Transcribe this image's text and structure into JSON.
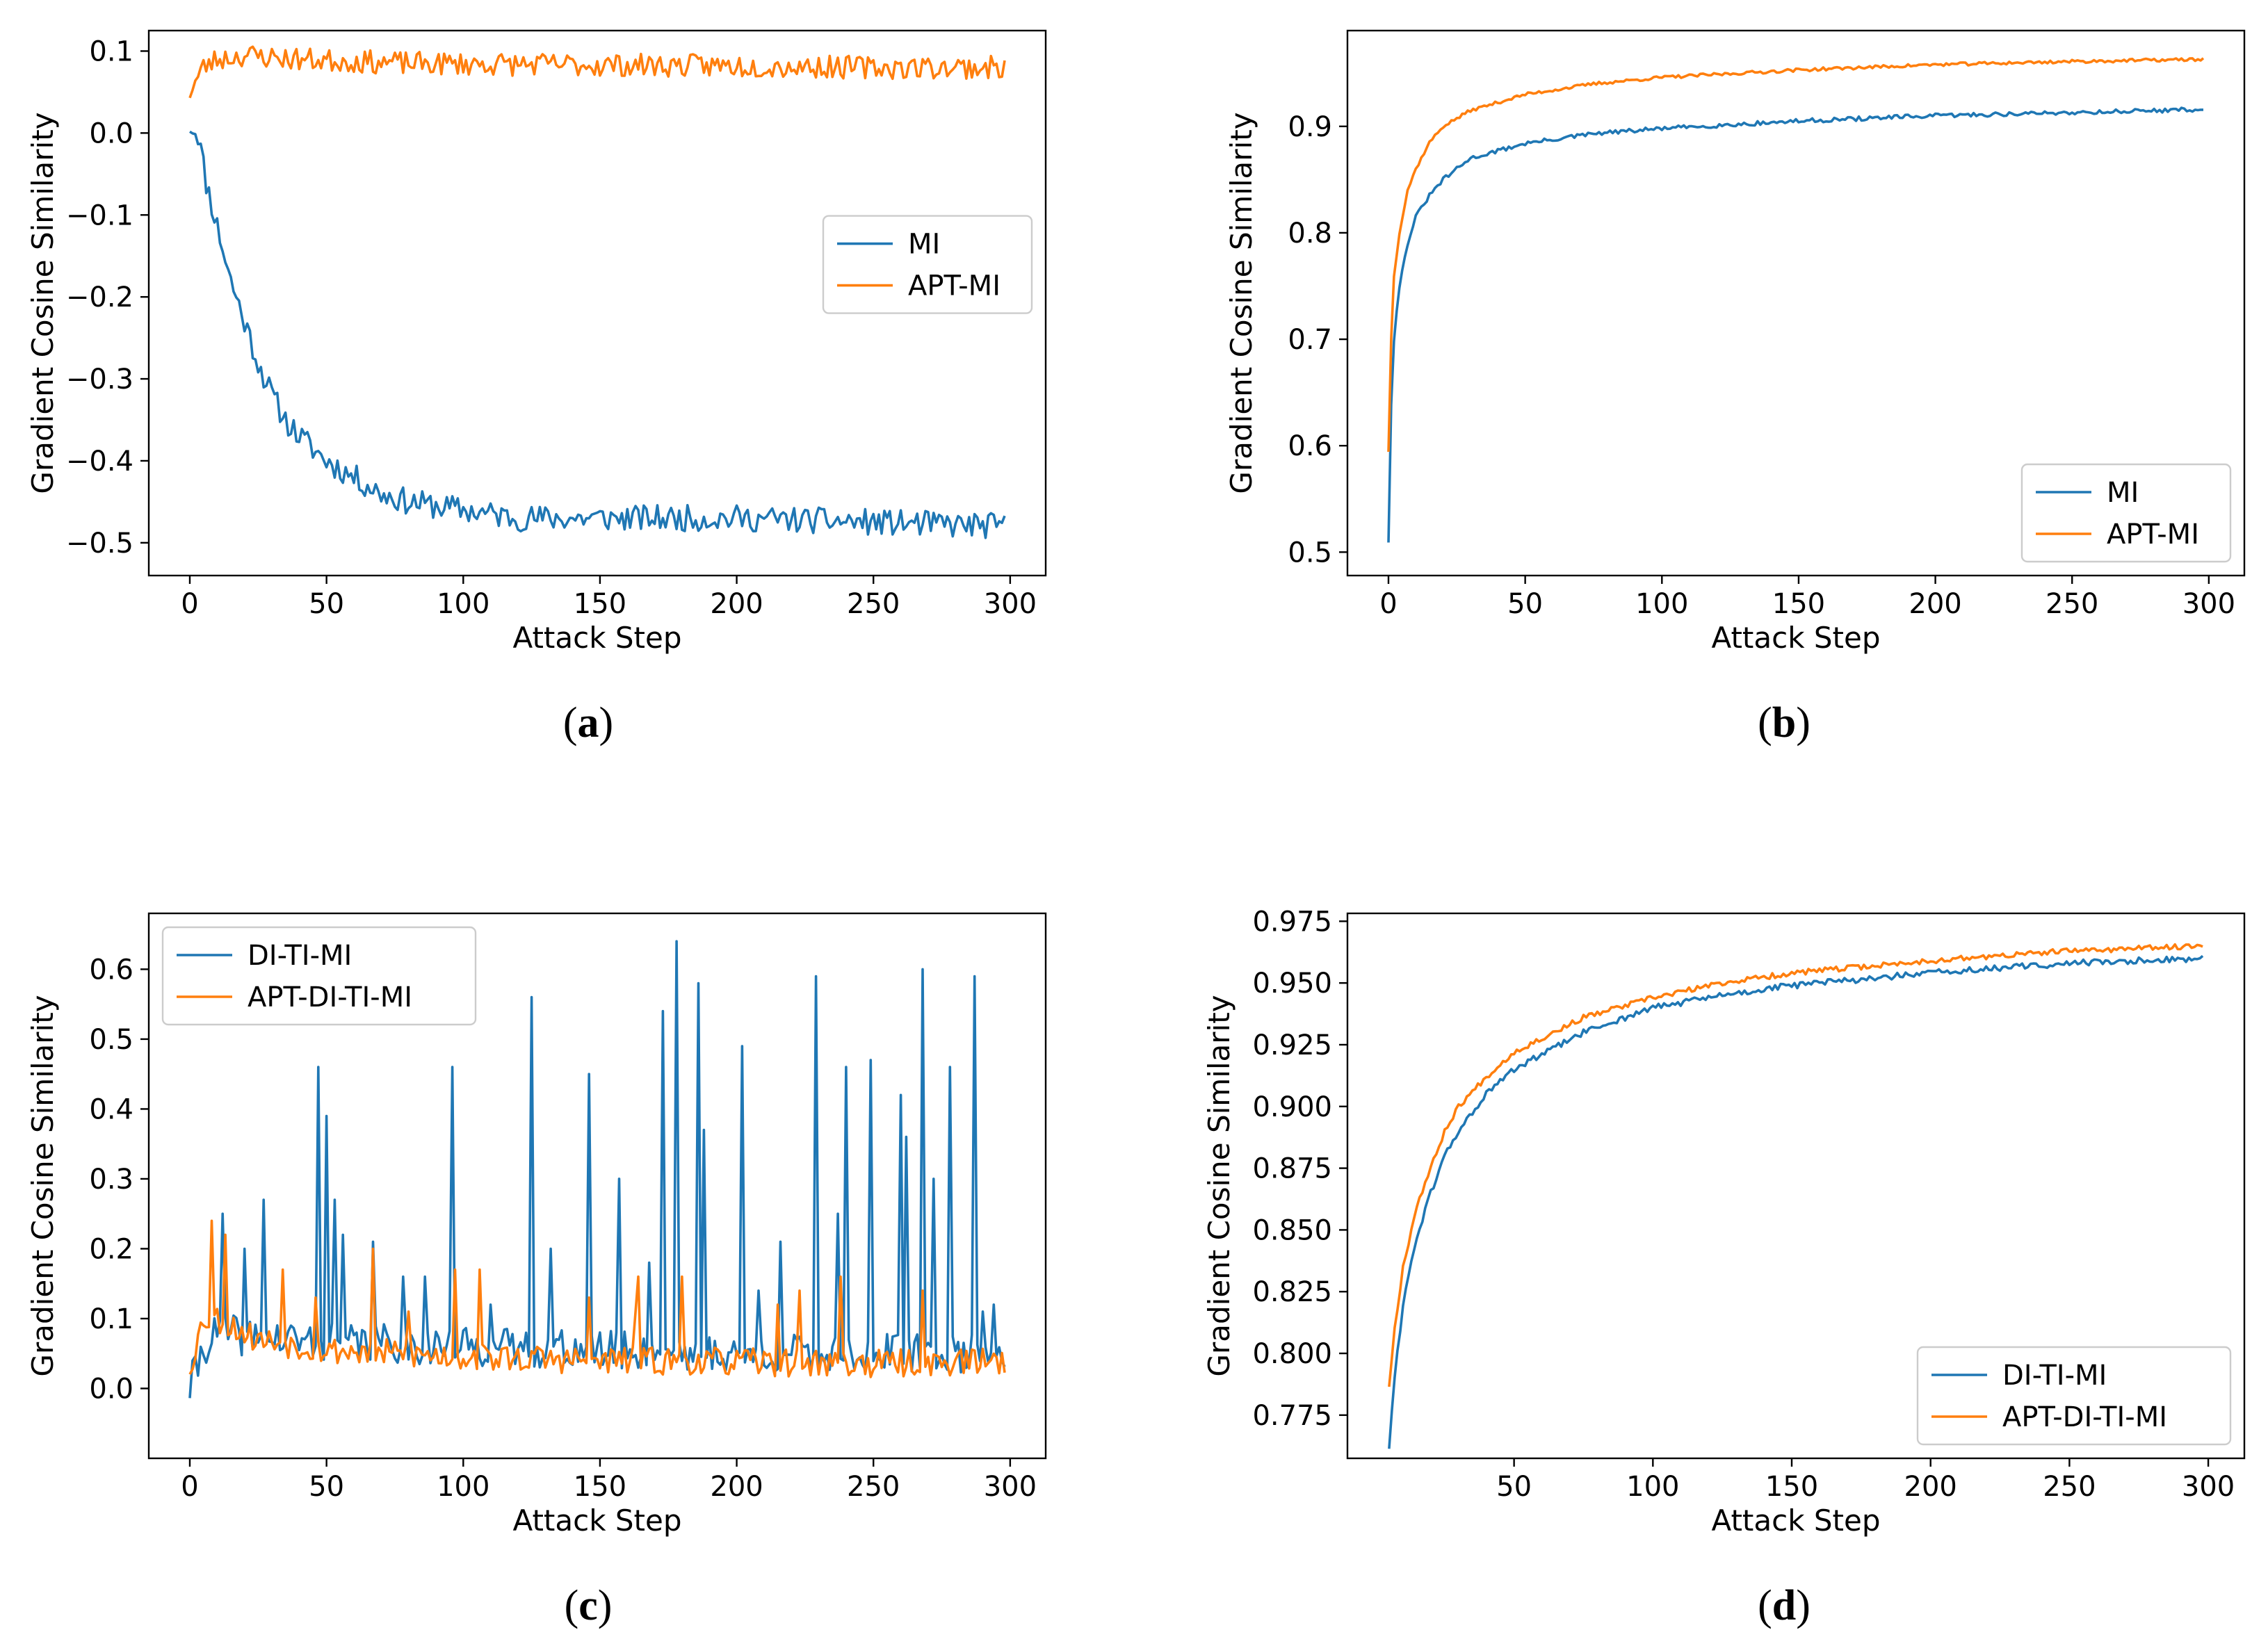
{
  "colors": {
    "series_1": "#1f77b4",
    "series_2": "#ff7f0e",
    "axes": "#000000",
    "legend_border": "#cccccc"
  },
  "chart_data": [
    {
      "panel": "a",
      "type": "line",
      "xlabel": "Attack Step",
      "ylabel": "Gradient Cosine Similarity",
      "xlim": [
        -15,
        313
      ],
      "ylim": [
        -0.54,
        0.125
      ],
      "xticks": [
        0,
        50,
        100,
        150,
        200,
        250,
        300
      ],
      "xtick_labels": [
        "0",
        "50",
        "100",
        "150",
        "200",
        "250",
        "300"
      ],
      "yticks": [
        -0.5,
        -0.4,
        -0.3,
        -0.2,
        -0.1,
        0.0,
        0.1
      ],
      "ytick_labels": [
        "−0.5",
        "−0.4",
        "−0.3",
        "−0.2",
        "−0.1",
        "0.0",
        "0.1"
      ],
      "grid": false,
      "legend": {
        "placement": "center-right"
      },
      "series": [
        {
          "name": "MI",
          "color": "#1f77b4",
          "noise": 0.016,
          "seed": 11,
          "points": [
            [
              0,
              0.01
            ],
            [
              3,
              0.0
            ],
            [
              6,
              -0.06
            ],
            [
              9,
              -0.1
            ],
            [
              12,
              -0.14
            ],
            [
              15,
              -0.18
            ],
            [
              20,
              -0.23
            ],
            [
              25,
              -0.28
            ],
            [
              30,
              -0.32
            ],
            [
              35,
              -0.35
            ],
            [
              40,
              -0.37
            ],
            [
              45,
              -0.385
            ],
            [
              50,
              -0.4
            ],
            [
              60,
              -0.42
            ],
            [
              70,
              -0.44
            ],
            [
              80,
              -0.45
            ],
            [
              100,
              -0.46
            ],
            [
              120,
              -0.47
            ],
            [
              150,
              -0.47
            ],
            [
              200,
              -0.47
            ],
            [
              250,
              -0.475
            ],
            [
              298,
              -0.48
            ]
          ]
        },
        {
          "name": "APT-MI",
          "color": "#ff7f0e",
          "noise": 0.014,
          "seed": 23,
          "points": [
            [
              0,
              0.05
            ],
            [
              5,
              0.08
            ],
            [
              10,
              0.09
            ],
            [
              20,
              0.095
            ],
            [
              40,
              0.09
            ],
            [
              80,
              0.085
            ],
            [
              150,
              0.083
            ],
            [
              200,
              0.082
            ],
            [
              250,
              0.08
            ],
            [
              298,
              0.08
            ]
          ]
        }
      ]
    },
    {
      "panel": "b",
      "type": "line",
      "xlabel": "Attack Step",
      "ylabel": "Gradient Cosine Similarity",
      "xlim": [
        -15,
        313
      ],
      "ylim": [
        0.478,
        0.99
      ],
      "xticks": [
        0,
        50,
        100,
        150,
        200,
        250,
        300
      ],
      "xtick_labels": [
        "0",
        "50",
        "100",
        "150",
        "200",
        "250",
        "300"
      ],
      "yticks": [
        0.5,
        0.6,
        0.7,
        0.8,
        0.9
      ],
      "ytick_labels": [
        "0.5",
        "0.6",
        "0.7",
        "0.8",
        "0.9"
      ],
      "grid": false,
      "legend": {
        "placement": "bottom-right"
      },
      "series": [
        {
          "name": "MI",
          "color": "#1f77b4",
          "noise": 0.002,
          "seed": 31,
          "points": [
            [
              0,
              0.51
            ],
            [
              1,
              0.64
            ],
            [
              2,
              0.7
            ],
            [
              4,
              0.75
            ],
            [
              7,
              0.79
            ],
            [
              10,
              0.815
            ],
            [
              15,
              0.835
            ],
            [
              20,
              0.85
            ],
            [
              30,
              0.87
            ],
            [
              50,
              0.884
            ],
            [
              75,
              0.893
            ],
            [
              100,
              0.898
            ],
            [
              150,
              0.905
            ],
            [
              200,
              0.91
            ],
            [
              250,
              0.913
            ],
            [
              298,
              0.916
            ]
          ]
        },
        {
          "name": "APT-MI",
          "color": "#ff7f0e",
          "noise": 0.0015,
          "seed": 37,
          "points": [
            [
              0,
              0.595
            ],
            [
              1,
              0.7
            ],
            [
              2,
              0.76
            ],
            [
              4,
              0.8
            ],
            [
              7,
              0.84
            ],
            [
              10,
              0.86
            ],
            [
              15,
              0.885
            ],
            [
              20,
              0.9
            ],
            [
              30,
              0.915
            ],
            [
              50,
              0.93
            ],
            [
              75,
              0.94
            ],
            [
              100,
              0.946
            ],
            [
              150,
              0.953
            ],
            [
              200,
              0.958
            ],
            [
              250,
              0.961
            ],
            [
              298,
              0.963
            ]
          ]
        }
      ]
    },
    {
      "panel": "c",
      "type": "line",
      "xlabel": "Attack Step",
      "ylabel": "Gradient Cosine Similarity",
      "xlim": [
        -15,
        313
      ],
      "ylim": [
        -0.1,
        0.68
      ],
      "xticks": [
        0,
        50,
        100,
        150,
        200,
        250,
        300
      ],
      "xtick_labels": [
        "0",
        "50",
        "100",
        "150",
        "200",
        "250",
        "300"
      ],
      "yticks": [
        0.0,
        0.1,
        0.2,
        0.3,
        0.4,
        0.5,
        0.6
      ],
      "ytick_labels": [
        "0.0",
        "0.1",
        "0.2",
        "0.3",
        "0.4",
        "0.5",
        "0.6"
      ],
      "grid": false,
      "legend": {
        "placement": "top-left"
      },
      "series": [
        {
          "name": "DI-TI-MI",
          "color": "#1f77b4",
          "noise": 0.028,
          "seed": 41,
          "points": [
            [
              0,
              0.0
            ],
            [
              5,
              0.06
            ],
            [
              10,
              0.08
            ],
            [
              30,
              0.07
            ],
            [
              100,
              0.06
            ],
            [
              200,
              0.05
            ],
            [
              298,
              0.05
            ]
          ],
          "spikes": [
            [
              12,
              0.25
            ],
            [
              20,
              0.2
            ],
            [
              27,
              0.27
            ],
            [
              47,
              0.46
            ],
            [
              50,
              0.39
            ],
            [
              53,
              0.27
            ],
            [
              56,
              0.22
            ],
            [
              67,
              0.21
            ],
            [
              78,
              0.16
            ],
            [
              86,
              0.16
            ],
            [
              96,
              0.46
            ],
            [
              110,
              0.12
            ],
            [
              125,
              0.56
            ],
            [
              132,
              0.2
            ],
            [
              146,
              0.45
            ],
            [
              157,
              0.3
            ],
            [
              168,
              0.18
            ],
            [
              173,
              0.54
            ],
            [
              178,
              0.64
            ],
            [
              186,
              0.58
            ],
            [
              188,
              0.37
            ],
            [
              202,
              0.49
            ],
            [
              208,
              0.14
            ],
            [
              216,
              0.21
            ],
            [
              229,
              0.59
            ],
            [
              237,
              0.25
            ],
            [
              240,
              0.46
            ],
            [
              249,
              0.47
            ],
            [
              260,
              0.42
            ],
            [
              262,
              0.36
            ],
            [
              268,
              0.6
            ],
            [
              272,
              0.3
            ],
            [
              278,
              0.46
            ],
            [
              287,
              0.59
            ],
            [
              290,
              0.11
            ],
            [
              294,
              0.12
            ]
          ]
        },
        {
          "name": "APT-DI-TI-MI",
          "color": "#ff7f0e",
          "noise": 0.02,
          "seed": 53,
          "points": [
            [
              0,
              0.03
            ],
            [
              5,
              0.1
            ],
            [
              10,
              0.1
            ],
            [
              25,
              0.07
            ],
            [
              50,
              0.055
            ],
            [
              100,
              0.045
            ],
            [
              150,
              0.04
            ],
            [
              200,
              0.038
            ],
            [
              250,
              0.035
            ],
            [
              298,
              0.04
            ]
          ],
          "spikes": [
            [
              8,
              0.24
            ],
            [
              13,
              0.22
            ],
            [
              34,
              0.17
            ],
            [
              46,
              0.13
            ],
            [
              67,
              0.2
            ],
            [
              80,
              0.11
            ],
            [
              97,
              0.17
            ],
            [
              106,
              0.17
            ],
            [
              146,
              0.13
            ],
            [
              163,
              0.11
            ],
            [
              164,
              0.16
            ],
            [
              180,
              0.16
            ],
            [
              215,
              0.12
            ],
            [
              223,
              0.14
            ],
            [
              238,
              0.16
            ],
            [
              268,
              0.14
            ]
          ]
        }
      ]
    },
    {
      "panel": "d",
      "type": "line",
      "xlabel": "Attack Step",
      "ylabel": "Gradient Cosine Similarity",
      "xlim": [
        -10,
        313
      ],
      "ylim": [
        0.7575,
        0.9782
      ],
      "xticks": [
        50,
        100,
        150,
        200,
        250,
        300
      ],
      "xtick_labels": [
        "50",
        "100",
        "150",
        "200",
        "250",
        "300"
      ],
      "yticks": [
        0.775,
        0.8,
        0.825,
        0.85,
        0.875,
        0.9,
        0.925,
        0.95,
        0.975
      ],
      "ytick_labels": [
        "0.775",
        "0.800",
        "0.825",
        "0.850",
        "0.875",
        "0.900",
        "0.925",
        "0.950",
        "0.975"
      ],
      "grid": false,
      "legend": {
        "placement": "bottom-right"
      },
      "series": [
        {
          "name": "DI-TI-MI",
          "color": "#1f77b4",
          "noise": 0.0013,
          "seed": 61,
          "points": [
            [
              5,
              0.762
            ],
            [
              7,
              0.79
            ],
            [
              10,
              0.82
            ],
            [
              14,
              0.843
            ],
            [
              20,
              0.865
            ],
            [
              25,
              0.88
            ],
            [
              30,
              0.89
            ],
            [
              40,
              0.905
            ],
            [
              50,
              0.915
            ],
            [
              75,
              0.93
            ],
            [
              100,
              0.94
            ],
            [
              125,
              0.945
            ],
            [
              150,
              0.949
            ],
            [
              200,
              0.954
            ],
            [
              250,
              0.958
            ],
            [
              298,
              0.96
            ]
          ]
        },
        {
          "name": "APT-DI-TI-MI",
          "color": "#ff7f0e",
          "noise": 0.0011,
          "seed": 67,
          "points": [
            [
              5,
              0.787
            ],
            [
              7,
              0.81
            ],
            [
              10,
              0.835
            ],
            [
              15,
              0.86
            ],
            [
              20,
              0.875
            ],
            [
              25,
              0.89
            ],
            [
              30,
              0.9
            ],
            [
              40,
              0.912
            ],
            [
              50,
              0.922
            ],
            [
              75,
              0.936
            ],
            [
              100,
              0.944
            ],
            [
              125,
              0.95
            ],
            [
              150,
              0.954
            ],
            [
              200,
              0.959
            ],
            [
              250,
              0.963
            ],
            [
              298,
              0.965
            ]
          ]
        }
      ]
    }
  ],
  "captions": [
    {
      "open": "(",
      "letter": "a",
      "close": ")"
    },
    {
      "open": "(",
      "letter": "b",
      "close": ")"
    },
    {
      "open": "(",
      "letter": "c",
      "close": ")"
    },
    {
      "open": "(",
      "letter": "d",
      "close": ")"
    }
  ]
}
